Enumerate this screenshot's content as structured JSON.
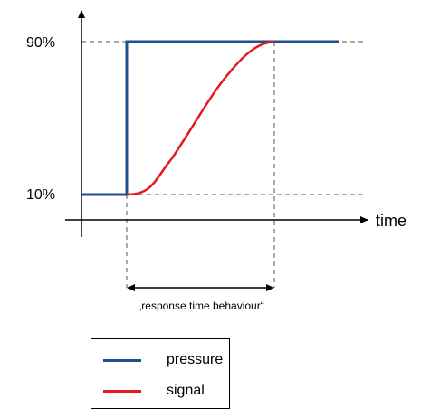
{
  "diagram": {
    "y_labels": {
      "high": "90%",
      "low": "10%"
    },
    "x_axis_label": "time",
    "interval_label": "„response time behaviour“",
    "colors": {
      "pressure": "#1f4e91",
      "signal": "#e31a1c",
      "guide": "#555555",
      "axis": "#000000"
    }
  },
  "legend": {
    "items": [
      {
        "label": "pressure",
        "color": "#1f4e91"
      },
      {
        "label": "signal",
        "color": "#e31a1c"
      }
    ]
  }
}
